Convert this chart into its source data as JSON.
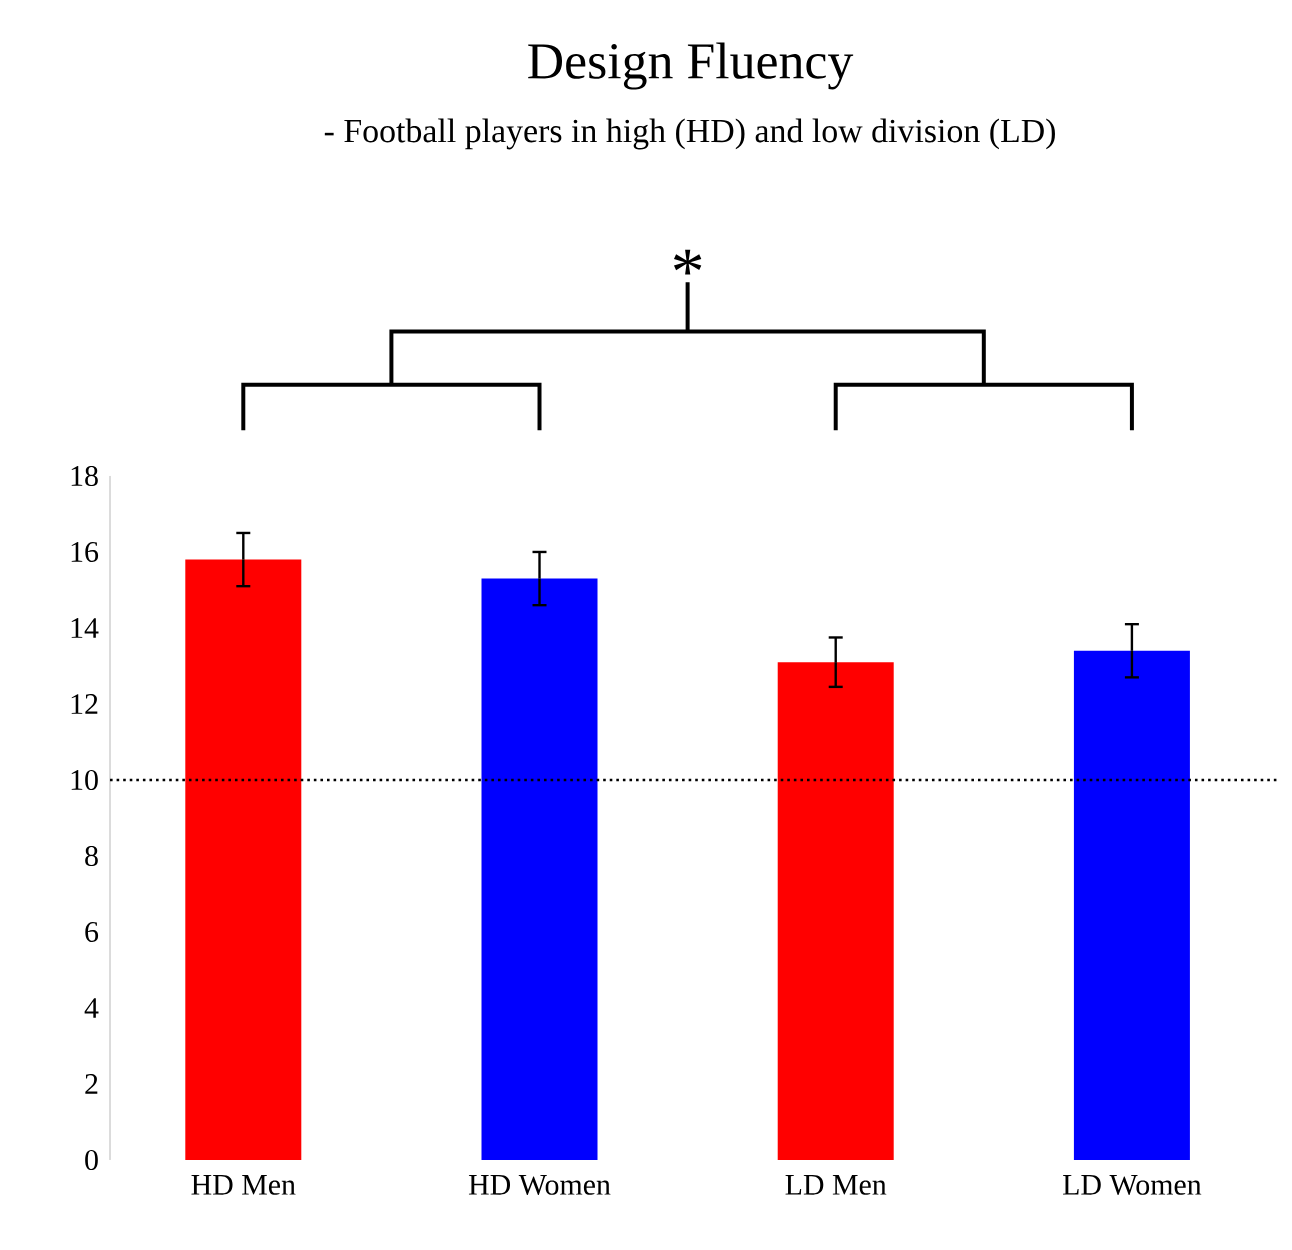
{
  "chart_data": {
    "type": "bar",
    "title": "Design Fluency",
    "subtitle": "- Football players in high (HD) and low division (LD)",
    "categories": [
      "HD Men",
      "HD Women",
      "LD Men",
      "LD Women"
    ],
    "values": [
      15.8,
      15.3,
      13.1,
      13.4
    ],
    "errors": [
      0.7,
      0.7,
      0.65,
      0.7
    ],
    "colors": [
      "#ff0000",
      "#0000ff",
      "#ff0000",
      "#0000ff"
    ],
    "ylim": [
      0,
      18
    ],
    "yticks": [
      0,
      2,
      4,
      6,
      8,
      10,
      12,
      14,
      16,
      18
    ],
    "ref_lines": [
      {
        "axis": "y",
        "value": 10,
        "color": "#000000",
        "line_style": "dotted"
      }
    ],
    "annotations": [
      "*"
    ]
  }
}
